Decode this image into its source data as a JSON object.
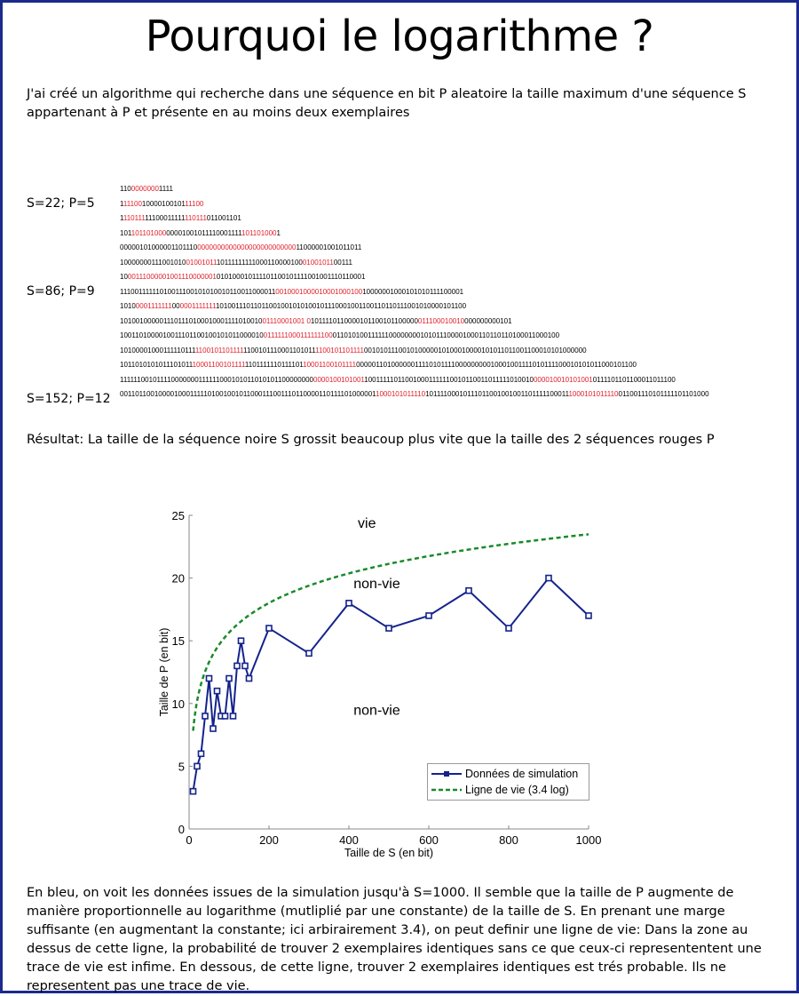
{
  "title": "Pourquoi le logarithme ?",
  "intro": "J'ai créé un algorithme qui recherche dans une séquence en bit P  aleatoire la taille maximum d'une séquence S appartenant à P et présente en au moins  deux exemplaires",
  "examples": [
    {
      "label": "S=22; P=5"
    },
    {
      "label": "S=86; P=9"
    },
    {
      "label": "S=152; P=12"
    }
  ],
  "sequences": [
    [
      [
        "110",
        0
      ],
      [
        "0000000",
        1
      ],
      [
        "1111",
        0
      ]
    ],
    [
      [
        "1",
        0
      ],
      [
        "11100",
        1
      ],
      [
        "10000100101",
        0
      ],
      [
        "11100",
        1
      ]
    ],
    [
      [
        "1",
        0
      ],
      [
        "110111",
        1
      ],
      [
        "11100011111",
        0
      ],
      [
        "110111",
        1
      ],
      [
        "011001101",
        0
      ]
    ],
    [
      [
        "101",
        0
      ],
      [
        "101101000",
        1
      ],
      [
        "00001001011110001111",
        0
      ],
      [
        "101101000",
        1
      ],
      [
        "1",
        0
      ]
    ],
    [
      [
        "00000101000001101110",
        0
      ],
      [
        "0000000000000000000000000",
        1
      ],
      [
        "11000001001011011",
        0
      ]
    ],
    [
      [
        "10000000111001010",
        0
      ],
      [
        "01001011",
        1
      ],
      [
        "10111111111000110000100",
        0
      ],
      [
        "01001011",
        1
      ],
      [
        "00111",
        0
      ]
    ],
    [
      [
        "10",
        0
      ],
      [
        "00111000001001110000001",
        1
      ],
      [
        "010100010111101100101111001001110110001",
        0
      ]
    ],
    [
      [
        "11100111111010011100101010010110011000011",
        0
      ],
      [
        "0010001000010001000100",
        1
      ],
      [
        "10000001000101010111100001",
        0
      ]
    ],
    [
      [
        "1010",
        0
      ],
      [
        "0001111111",
        1
      ],
      [
        "00",
        0
      ],
      [
        "0001111111",
        1
      ],
      [
        "10100111011011001001010100101110001001100110110111001010000101100",
        0
      ]
    ],
    [
      [
        "1010010000011101110100010001111010010",
        0
      ],
      [
        "01110001001 0",
        1
      ],
      [
        "1011110110000101100101100000",
        0
      ],
      [
        "011100010010",
        1
      ],
      [
        "000000000101",
        0
      ]
    ],
    [
      [
        "1001101000010011101100100101011000010",
        0
      ],
      [
        "0111111000111111100",
        1
      ],
      [
        "01101010011111100000000101011100001000110110110100011000100",
        0
      ]
    ],
    [
      [
        "10100001000111110111",
        0
      ],
      [
        "1100101101111",
        1
      ],
      [
        "1100101110001101011",
        0
      ],
      [
        "1100101101111",
        1
      ],
      [
        "001010111001010000010100010000101011011001100010101000000",
        0
      ]
    ],
    [
      [
        "1011010101011101011",
        0
      ],
      [
        "10001100101111",
        1
      ],
      [
        "1101111110111101",
        0
      ],
      [
        "10001100101111",
        1
      ],
      [
        "0000011010000001111010111100000000010001001111010111100010101011000101100",
        0
      ]
    ],
    [
      [
        "111111001011110000000111111000101011010101100000000",
        0
      ],
      [
        "0000100101001",
        1
      ],
      [
        "100111110110010001111110010110011011111010010",
        0
      ],
      [
        "000010010101001",
        1
      ],
      [
        "0111101101100011011100",
        0
      ]
    ],
    [
      [
        "0011011001000010001111101001001011000111001110110000110111101000001",
        0
      ],
      [
        "1000101011110",
        1
      ],
      [
        "10111100010111011001001001101111100011",
        0
      ],
      [
        "1000101011110",
        1
      ],
      [
        "011001110101111101101000",
        0
      ]
    ]
  ],
  "result": "Résultat: La taille de la séquence noire S grossit beaucoup plus vite que la taille des 2 séquences rouges P",
  "outro": "En bleu, on voit les données issues de la simulation jusqu'à S=1000.  Il semble que la taille de P augmente de manière proportionnelle au logarithme (mutliplié par une constante) de la taille de S.  En prenant une marge suffisante (en augmentant la constante; ici arbirairement 3.4), on peut definir une ligne de vie: Dans  la zone au dessus de cette ligne, la probabilité de trouver 2 exemplaires identiques sans ce que ceux-ci represententent une trace de vie est infime. En dessous, de cette ligne, trouver 2 exemplaires identiques est trés probable. Ils ne representent pas une trace de vie.",
  "colors": {
    "frame": "#1b2a8c",
    "red_sequence": "#e0202a",
    "simulation": "#14238c",
    "life_line": "#1a8a2a"
  },
  "chart_data": {
    "type": "line",
    "xlabel": "Taille de S (en bit)",
    "ylabel": "Taille de P (en bit)",
    "xlim": [
      0,
      1000
    ],
    "ylim": [
      0,
      25
    ],
    "xticks": [
      0,
      200,
      400,
      600,
      800,
      1000
    ],
    "yticks": [
      0,
      5,
      10,
      15,
      20,
      25
    ],
    "grid": false,
    "legend_position": "bottom-right",
    "annotations": [
      {
        "text": "vie",
        "x": 445,
        "y": 24
      },
      {
        "text": "non-vie",
        "x": 470,
        "y": 19.2
      },
      {
        "text": "non-vie",
        "x": 470,
        "y": 9.1
      }
    ],
    "series": [
      {
        "name": "Données de simulation",
        "style": "solid-square-markers",
        "x": [
          10,
          20,
          30,
          40,
          50,
          60,
          70,
          80,
          90,
          100,
          110,
          120,
          130,
          140,
          150,
          200,
          300,
          400,
          500,
          600,
          700,
          800,
          900,
          1000
        ],
        "y": [
          3,
          5,
          6,
          9,
          12,
          8,
          11,
          9,
          9,
          12,
          9,
          13,
          15,
          13,
          12,
          16,
          14,
          18,
          16,
          17,
          19,
          16,
          20,
          17
        ]
      },
      {
        "name": "Ligne de vie (3.4 log)",
        "style": "dashed",
        "formula": "3.4 * ln(S)",
        "x_range": [
          10,
          1000
        ]
      }
    ]
  }
}
